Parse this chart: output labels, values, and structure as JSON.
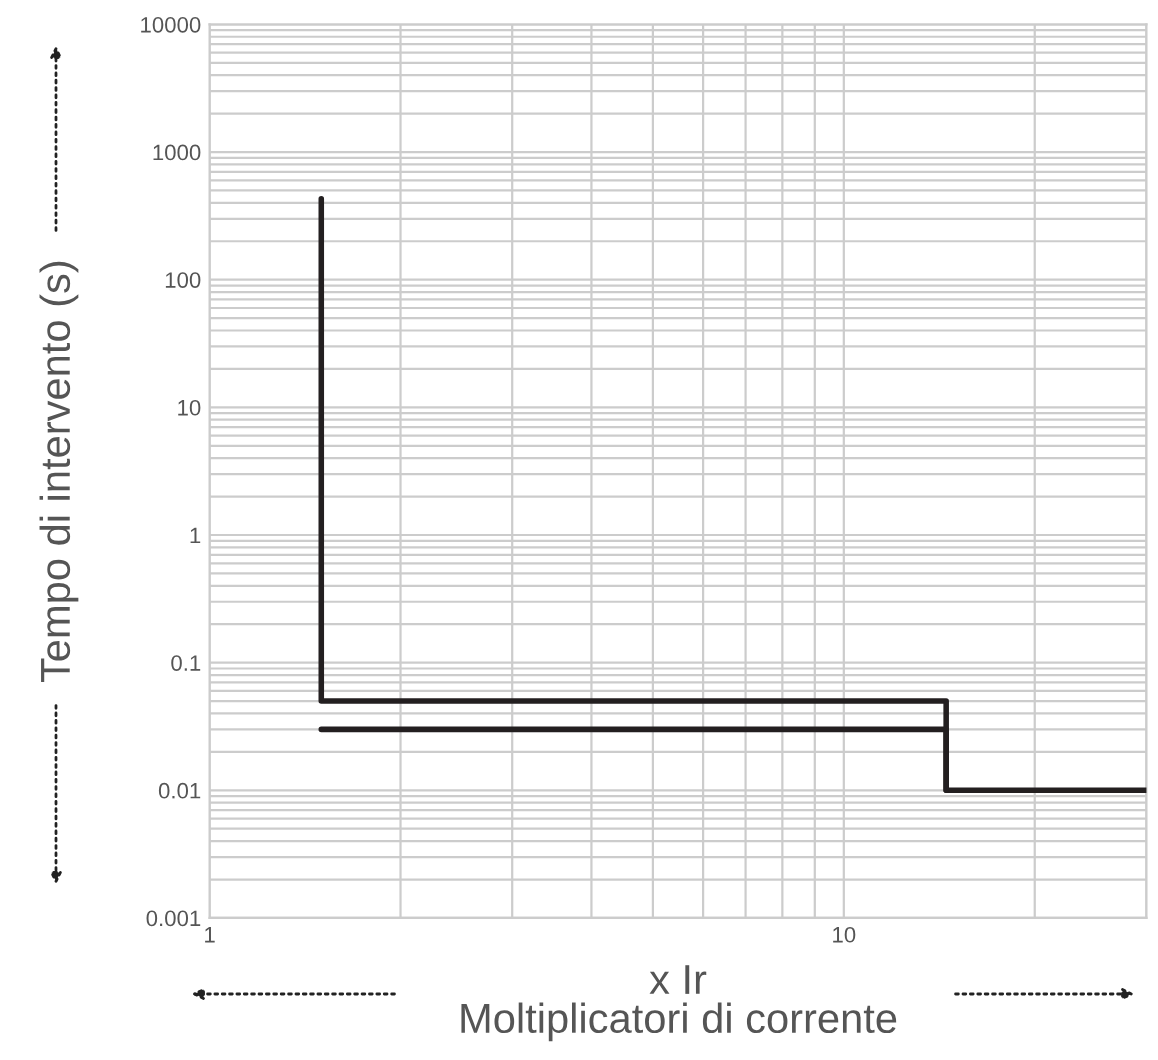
{
  "chart_data": {
    "type": "line",
    "xlabel": "x Ir\nMoltiplicatori di corrente",
    "ylabel": "Tempo di intervento (s)",
    "log": "xy",
    "grid": true,
    "line_style": "solid",
    "marker": "none",
    "xlim": [
      1,
      30
    ],
    "xticks": [
      1,
      10
    ],
    "ylim": [
      0.001,
      10000
    ],
    "yticks": [
      0.001,
      0.01,
      0.1,
      1,
      10,
      100,
      1000,
      10000
    ],
    "series": [
      {
        "color": "#231f20",
        "x": [
          1.5,
          1.5,
          14.5,
          14.5,
          30
        ],
        "values": [
          430,
          0.05,
          0.05,
          0.01,
          0.01
        ]
      },
      {
        "color": "#231f20",
        "x": [
          1.5,
          14.5,
          14.5
        ],
        "values": [
          0.03,
          0.03,
          0.01
        ]
      }
    ]
  }
}
